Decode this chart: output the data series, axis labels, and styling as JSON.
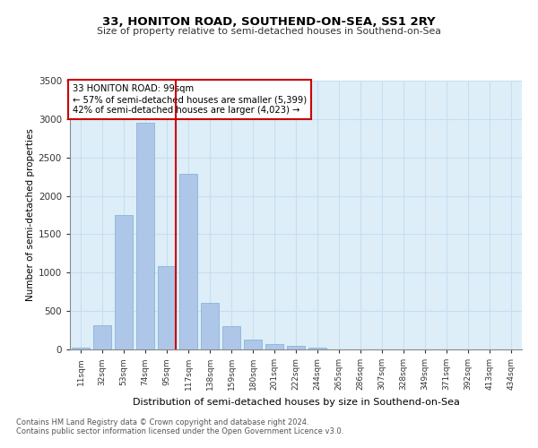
{
  "title": "33, HONITON ROAD, SOUTHEND-ON-SEA, SS1 2RY",
  "subtitle": "Size of property relative to semi-detached houses in Southend-on-Sea",
  "xlabel": "Distribution of semi-detached houses by size in Southend-on-Sea",
  "ylabel": "Number of semi-detached properties",
  "footnote1": "Contains HM Land Registry data © Crown copyright and database right 2024.",
  "footnote2": "Contains public sector information licensed under the Open Government Licence v3.0.",
  "annotation_line1": "33 HONITON ROAD: 99sqm",
  "annotation_line2": "← 57% of semi-detached houses are smaller (5,399)",
  "annotation_line3": "42% of semi-detached houses are larger (4,023) →",
  "bar_labels": [
    "11sqm",
    "32sqm",
    "53sqm",
    "74sqm",
    "95sqm",
    "117sqm",
    "138sqm",
    "159sqm",
    "180sqm",
    "201sqm",
    "222sqm",
    "244sqm",
    "265sqm",
    "286sqm",
    "307sqm",
    "328sqm",
    "349sqm",
    "371sqm",
    "392sqm",
    "413sqm",
    "434sqm"
  ],
  "bar_values": [
    20,
    310,
    1750,
    2950,
    1090,
    2290,
    610,
    300,
    130,
    70,
    50,
    20,
    0,
    0,
    0,
    0,
    0,
    0,
    0,
    0,
    0
  ],
  "highlight_index": 4,
  "bar_color": "#aec6e8",
  "bar_edge_color": "#7bafd4",
  "highlight_line_color": "#cc0000",
  "annotation_box_edge": "#cc0000",
  "annotation_box_face": "#ffffff",
  "ylim": [
    0,
    3500
  ],
  "yticks": [
    0,
    500,
    1000,
    1500,
    2000,
    2500,
    3000,
    3500
  ],
  "grid_color": "#c8ddf0",
  "background_color": "#ddeef8"
}
